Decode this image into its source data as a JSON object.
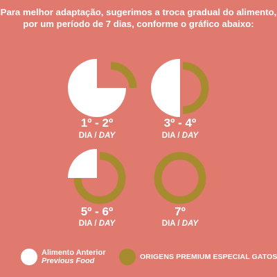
{
  "intro": {
    "line1": "Para melhor adaptação, sugerimos a troca gradual do alimento,",
    "line2": "por um período de 7 dias, conforme o gráfico abaixo:"
  },
  "chart_data": {
    "type": "pie",
    "series": [
      {
        "name": "Alimento Anterior / Previous Food",
        "color": "#FFFFFF"
      },
      {
        "name": "ORIGENS PREMIUM ESPECIAL GATOS",
        "color": "#A78B2F"
      }
    ],
    "panels": [
      {
        "days": "1º - 2º",
        "dia": "DIA",
        "day": "DAY",
        "previous_food_fraction": 0.75,
        "new_food_fraction": 0.25
      },
      {
        "days": "3º - 4º",
        "dia": "DIA",
        "day": "DAY",
        "previous_food_fraction": 0.5,
        "new_food_fraction": 0.5
      },
      {
        "days": "5º - 6º",
        "dia": "DIA",
        "day": "DAY",
        "previous_food_fraction": 0.25,
        "new_food_fraction": 0.75
      },
      {
        "days": "7º",
        "dia": "DIA",
        "day": "DAY",
        "previous_food_fraction": 0.0,
        "new_food_fraction": 1.0
      }
    ]
  },
  "legend": {
    "previous_line1": "Alimento Anterior",
    "previous_line2": "Previous Food",
    "new_label": "ORIGENS PREMIUM ESPECIAL GATOS"
  }
}
